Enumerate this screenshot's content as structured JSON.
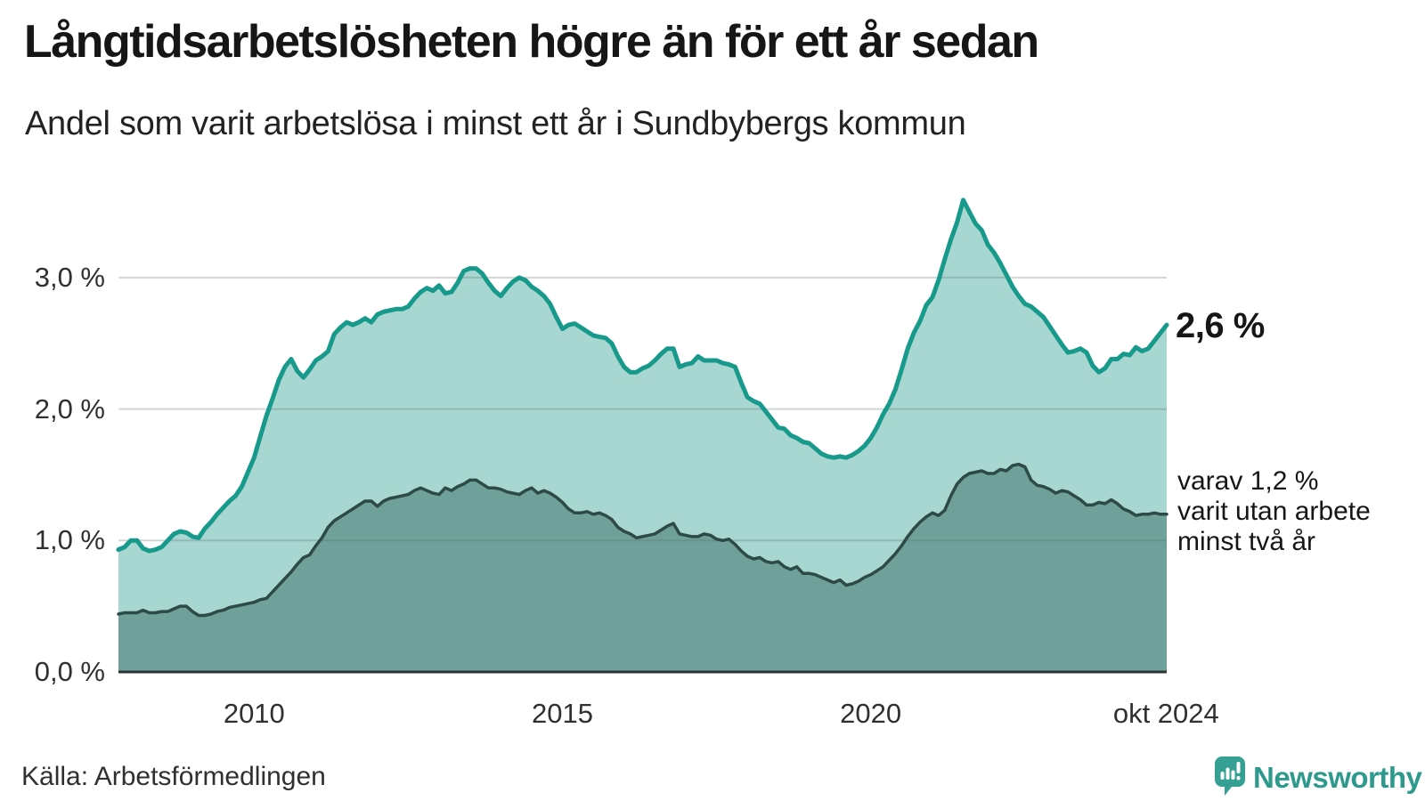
{
  "header": {
    "title": "Långtidsarbetslösheten högre än för ett år sedan",
    "subtitle": "Andel som varit arbetslösa i minst ett år i Sundbybergs kommun"
  },
  "annotations": {
    "latest_value": "2,6 %",
    "secondary_text": "varav 1,2 %\nvarit utan arbete\nminst två år"
  },
  "footer": {
    "source": "Källa: Arbetsförmedlingen",
    "brand": "Newsworthy",
    "brand_icon": "newsworthy-speech-bubble-bar-chart-icon",
    "brand_color": "#35a093"
  },
  "colors": {
    "line_1yr": "#17998b",
    "fill_1yr": "#a8d6d0",
    "line_2yr": "#2d4a47",
    "fill_2yr": "#6fa09a",
    "gridline": "rgba(90,112,112,0.28)",
    "axis_line": "#2b3534",
    "text": "#161616"
  },
  "chart_data": {
    "type": "area",
    "title": "Långtidsarbetslösheten högre än för ett år sedan",
    "subtitle": "Andel som varit arbetslösa i minst ett år i Sundbybergs kommun",
    "unit": "%",
    "grid": "horizontal",
    "legend": "none (direct labels at line ends)",
    "x_domain_years": [
      2007.8,
      2024.8
    ],
    "x_interval_years": 0.1,
    "ylim": [
      0,
      3.65
    ],
    "y_ticks": [
      {
        "value": 0,
        "label": "0,0 %"
      },
      {
        "value": 1,
        "label": "1,0 %"
      },
      {
        "value": 2,
        "label": "2,0 %"
      },
      {
        "value": 3,
        "label": "3,0 %"
      }
    ],
    "x_ticks": [
      {
        "year": 2010,
        "label": "2010"
      },
      {
        "year": 2015,
        "label": "2015"
      },
      {
        "year": 2020,
        "label": "2020"
      },
      {
        "year": 2024.79,
        "label": "okt 2024"
      }
    ],
    "series": [
      {
        "name": "Andel arbetslösa minst ett år",
        "end_label": "2,6 %",
        "line_color": "#17998b",
        "fill_color": "#a8d6d0",
        "line_width": 5,
        "values": [
          0.93,
          0.95,
          1.0,
          1.0,
          0.94,
          0.92,
          0.93,
          0.95,
          1.0,
          1.05,
          1.07,
          1.06,
          1.03,
          1.02,
          1.09,
          1.14,
          1.2,
          1.25,
          1.3,
          1.34,
          1.41,
          1.52,
          1.63,
          1.79,
          1.95,
          2.08,
          2.22,
          2.32,
          2.38,
          2.29,
          2.24,
          2.3,
          2.37,
          2.4,
          2.44,
          2.57,
          2.62,
          2.66,
          2.64,
          2.66,
          2.69,
          2.66,
          2.72,
          2.74,
          2.75,
          2.76,
          2.76,
          2.78,
          2.84,
          2.89,
          2.92,
          2.9,
          2.94,
          2.88,
          2.89,
          2.96,
          3.05,
          3.07,
          3.07,
          3.03,
          2.96,
          2.9,
          2.86,
          2.92,
          2.97,
          3.0,
          2.98,
          2.93,
          2.9,
          2.86,
          2.8,
          2.7,
          2.61,
          2.64,
          2.65,
          2.62,
          2.59,
          2.56,
          2.55,
          2.54,
          2.5,
          2.4,
          2.32,
          2.28,
          2.28,
          2.31,
          2.33,
          2.37,
          2.42,
          2.46,
          2.46,
          2.32,
          2.34,
          2.35,
          2.4,
          2.37,
          2.37,
          2.37,
          2.35,
          2.34,
          2.32,
          2.2,
          2.09,
          2.06,
          2.04,
          1.98,
          1.92,
          1.86,
          1.85,
          1.8,
          1.78,
          1.75,
          1.74,
          1.7,
          1.66,
          1.64,
          1.63,
          1.64,
          1.63,
          1.65,
          1.68,
          1.72,
          1.78,
          1.86,
          1.96,
          2.04,
          2.15,
          2.3,
          2.46,
          2.58,
          2.67,
          2.79,
          2.85,
          2.98,
          3.14,
          3.29,
          3.42,
          3.59,
          3.5,
          3.41,
          3.36,
          3.25,
          3.19,
          3.11,
          3.02,
          2.93,
          2.86,
          2.8,
          2.78,
          2.74,
          2.7,
          2.63,
          2.56,
          2.49,
          2.43,
          2.44,
          2.46,
          2.43,
          2.33,
          2.28,
          2.31,
          2.38,
          2.38,
          2.42,
          2.41,
          2.47,
          2.44,
          2.46,
          2.52,
          2.58,
          2.64
        ]
      },
      {
        "name": "varav arbetslösa minst två år",
        "end_label": "1,2 %",
        "line_color": "#2d4a47",
        "fill_color": "#6fa09a",
        "line_width": 3.5,
        "values": [
          0.44,
          0.45,
          0.45,
          0.45,
          0.47,
          0.45,
          0.45,
          0.46,
          0.46,
          0.48,
          0.5,
          0.5,
          0.46,
          0.43,
          0.43,
          0.44,
          0.46,
          0.47,
          0.49,
          0.5,
          0.51,
          0.52,
          0.53,
          0.55,
          0.56,
          0.61,
          0.66,
          0.71,
          0.76,
          0.82,
          0.87,
          0.89,
          0.96,
          1.02,
          1.1,
          1.15,
          1.18,
          1.21,
          1.24,
          1.27,
          1.3,
          1.3,
          1.26,
          1.3,
          1.32,
          1.33,
          1.34,
          1.35,
          1.38,
          1.4,
          1.38,
          1.36,
          1.35,
          1.4,
          1.38,
          1.41,
          1.43,
          1.46,
          1.46,
          1.43,
          1.4,
          1.4,
          1.39,
          1.37,
          1.36,
          1.35,
          1.38,
          1.4,
          1.36,
          1.38,
          1.36,
          1.33,
          1.29,
          1.24,
          1.21,
          1.21,
          1.22,
          1.2,
          1.21,
          1.19,
          1.16,
          1.1,
          1.07,
          1.05,
          1.02,
          1.03,
          1.04,
          1.05,
          1.08,
          1.11,
          1.13,
          1.05,
          1.04,
          1.03,
          1.03,
          1.05,
          1.04,
          1.01,
          1.0,
          1.01,
          0.97,
          0.92,
          0.88,
          0.86,
          0.87,
          0.84,
          0.83,
          0.84,
          0.8,
          0.78,
          0.8,
          0.75,
          0.75,
          0.74,
          0.72,
          0.7,
          0.68,
          0.7,
          0.66,
          0.67,
          0.69,
          0.72,
          0.74,
          0.77,
          0.8,
          0.85,
          0.9,
          0.96,
          1.03,
          1.09,
          1.14,
          1.18,
          1.21,
          1.19,
          1.23,
          1.34,
          1.43,
          1.48,
          1.51,
          1.52,
          1.53,
          1.51,
          1.51,
          1.54,
          1.53,
          1.57,
          1.58,
          1.56,
          1.46,
          1.42,
          1.41,
          1.39,
          1.36,
          1.38,
          1.37,
          1.34,
          1.31,
          1.27,
          1.27,
          1.29,
          1.28,
          1.31,
          1.28,
          1.24,
          1.22,
          1.19,
          1.2,
          1.2,
          1.21,
          1.2,
          1.2
        ]
      }
    ]
  }
}
